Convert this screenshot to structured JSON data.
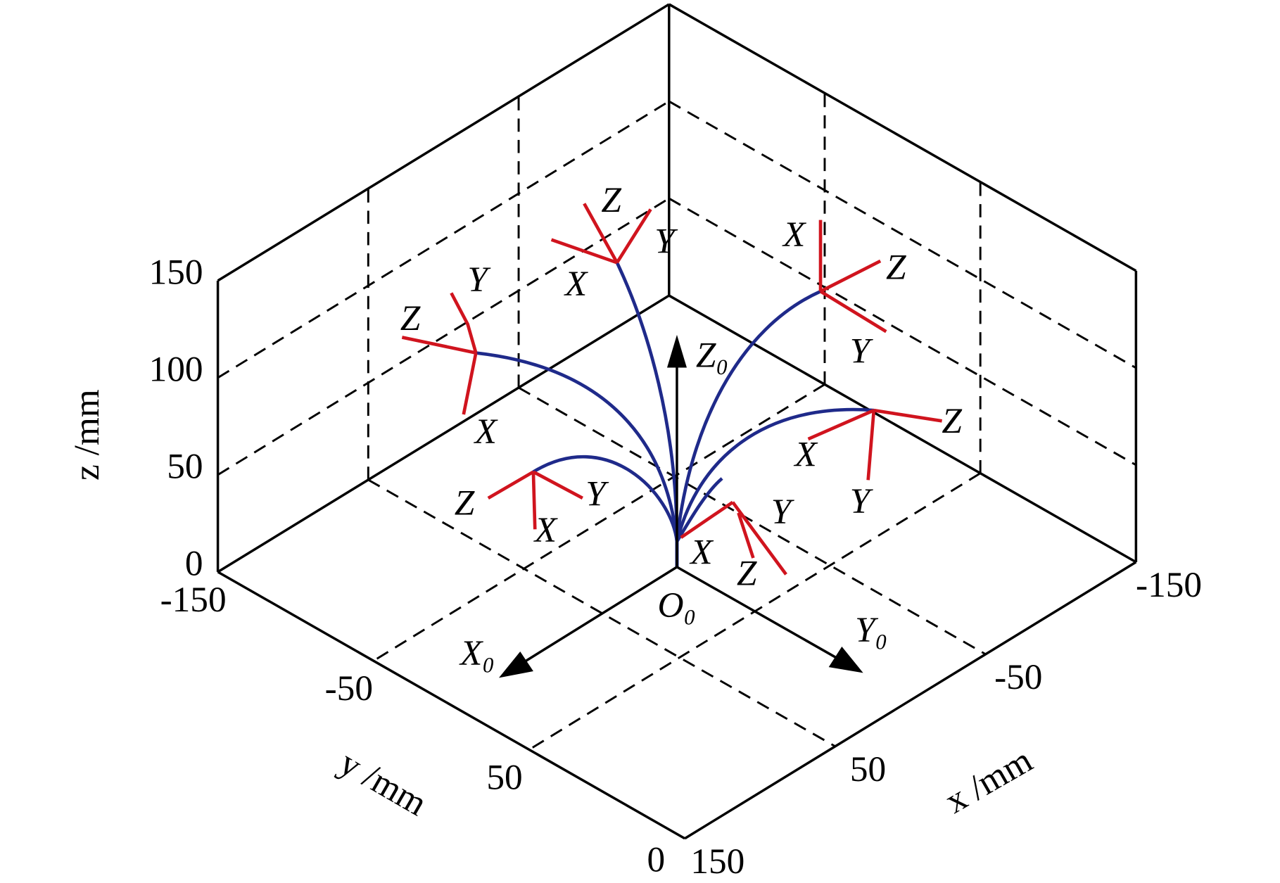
{
  "chart_data": {
    "type": "line3d",
    "xlabel": "x /mm",
    "ylabel": "y /mm",
    "zlabel": "z /mm",
    "xlim": [
      -150,
      150
    ],
    "ylim": [
      -150,
      150
    ],
    "zlim": [
      0,
      150
    ],
    "xticks": [
      -150,
      -50,
      50,
      150
    ],
    "yticks": [
      -150,
      -50,
      50
    ],
    "zticks": [
      0,
      50,
      100,
      150
    ],
    "y_corner_label": "0",
    "grid": true,
    "origin_labels": [
      "O₀",
      "X₀",
      "Y₀",
      "Z₀"
    ],
    "frame_labels": [
      "Z",
      "Y",
      "X",
      "Y",
      "Z",
      "X",
      "X",
      "Z",
      "Y",
      "Z",
      "X",
      "Y",
      "Z",
      "Y",
      "X",
      "Y",
      "X",
      "Z"
    ]
  }
}
